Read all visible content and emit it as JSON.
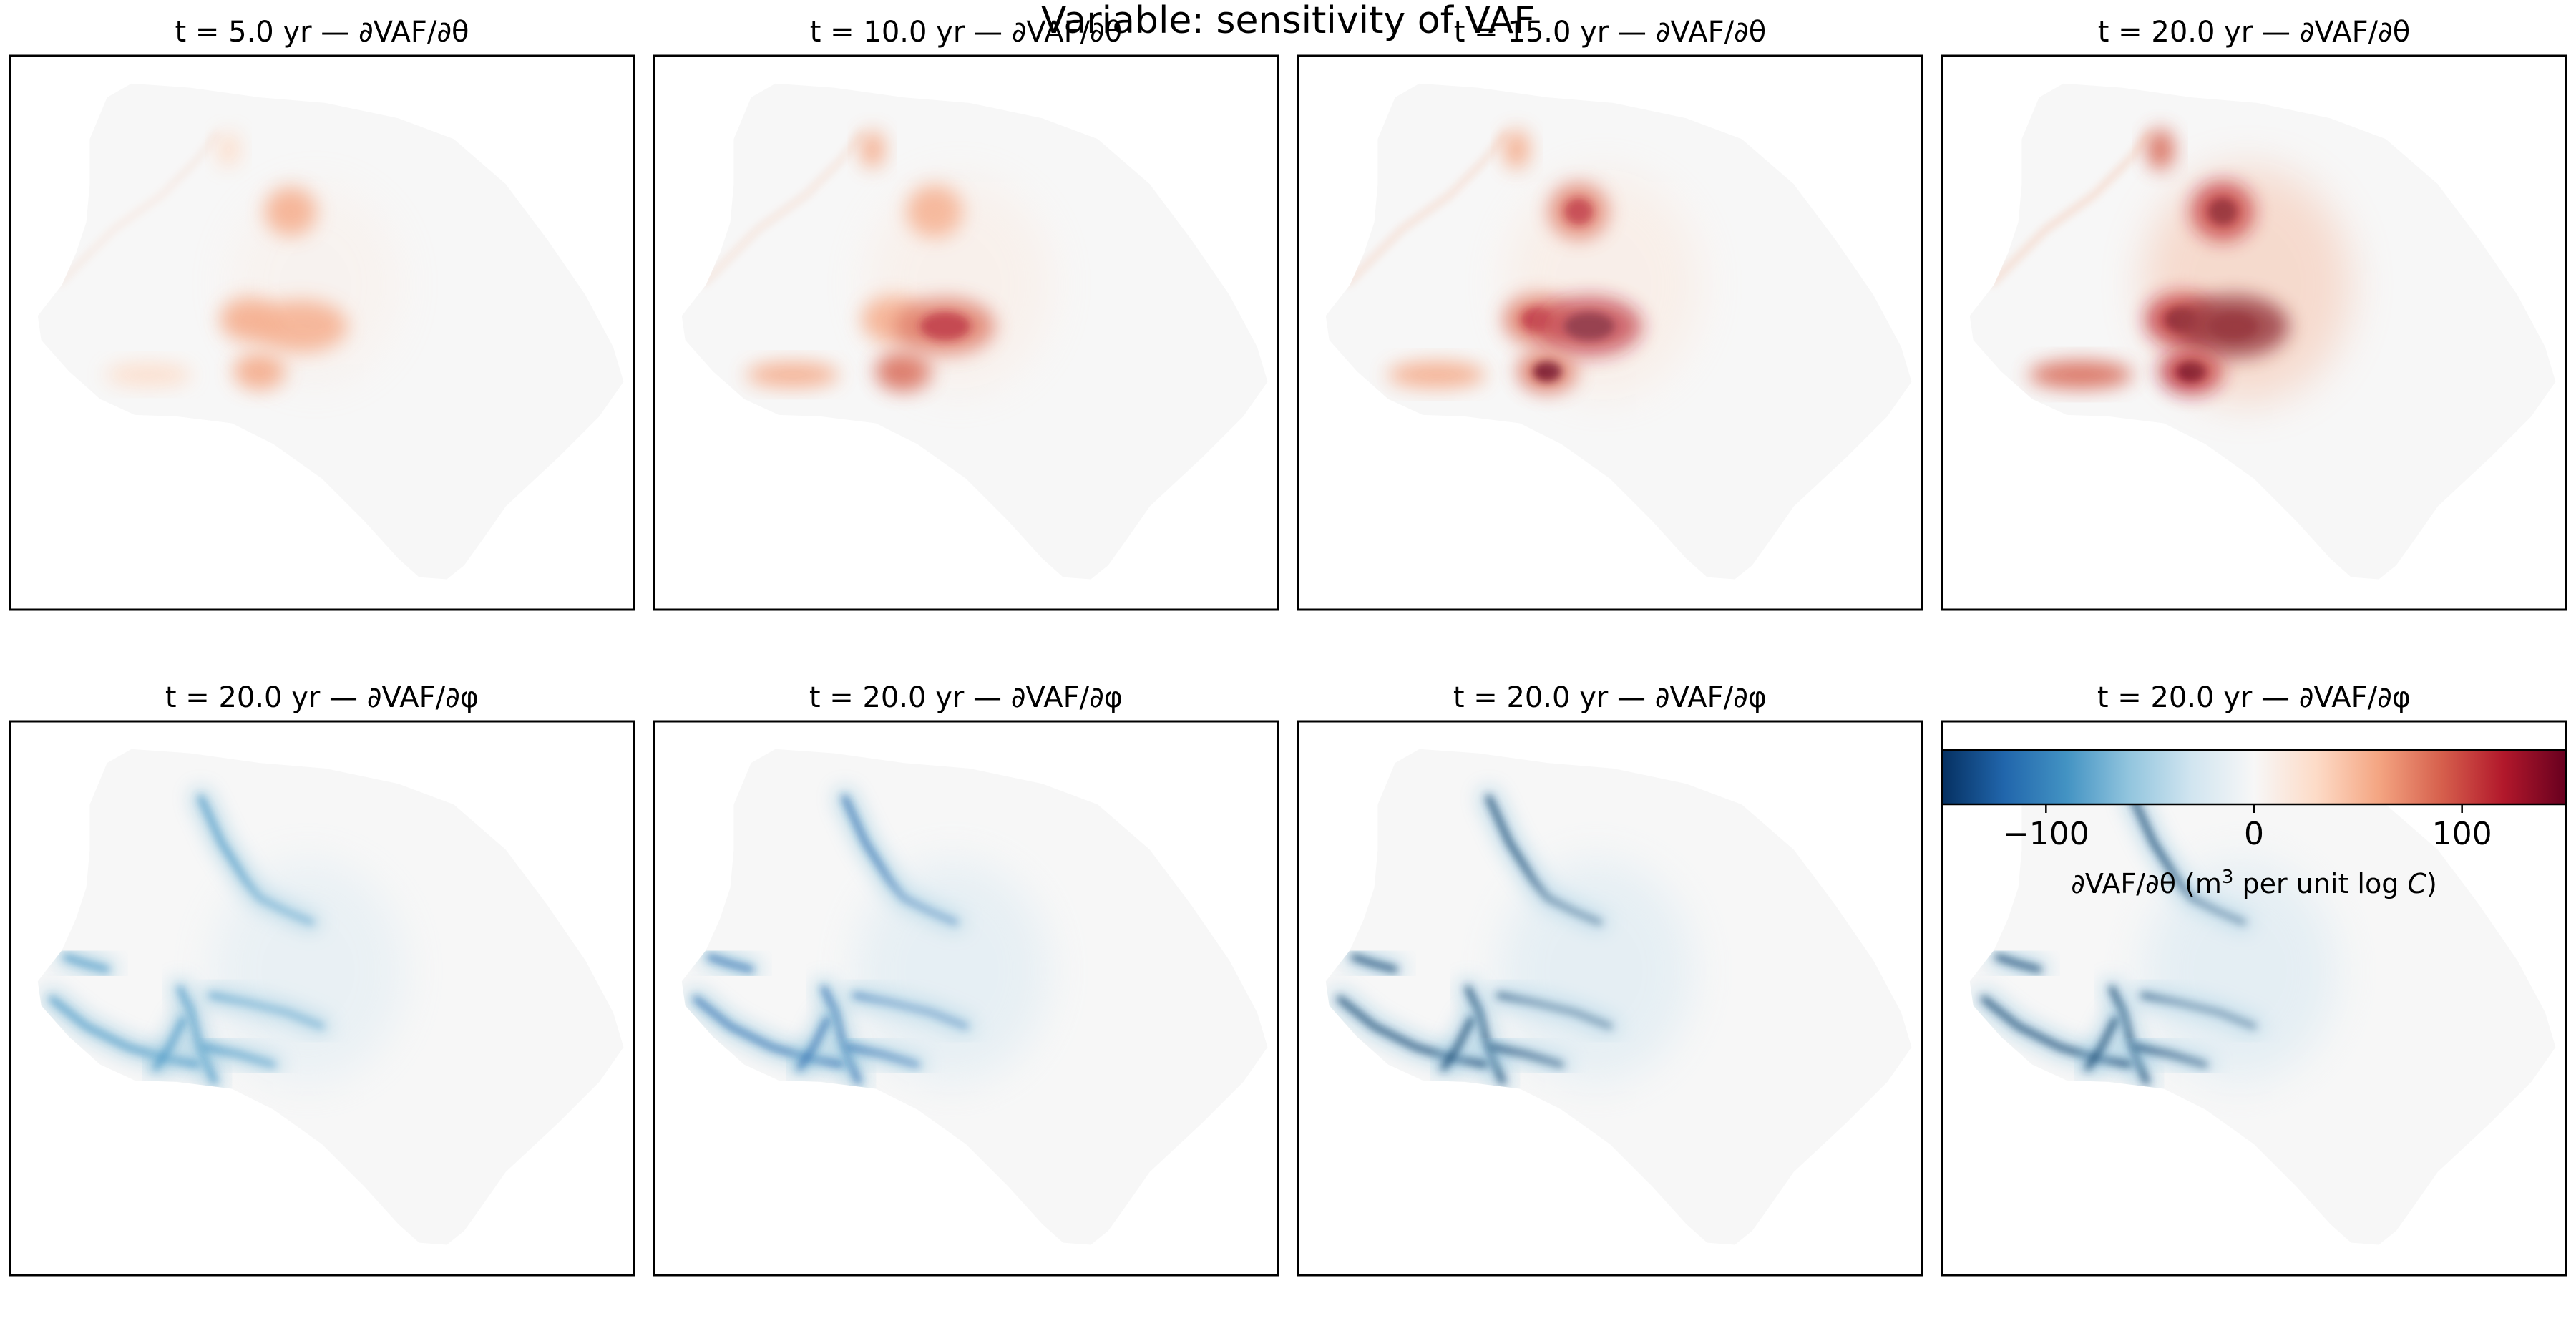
{
  "figure": {
    "suptitle": "Variable: sensitivity of VAF"
  },
  "colors": {
    "neg_strong": "#053061",
    "neg_mid": "#4393c3",
    "neutral": "#f7f7f7",
    "pos_mid": "#f4a582",
    "pos_strong": "#67001f",
    "panel_border": "#000000"
  },
  "chart_data": [
    {
      "type": "heatmap",
      "row": 0,
      "col": 0,
      "title": "t = 5.0 yr — ∂VAF/∂θ",
      "variable": "theta",
      "sign": "positive",
      "intensity": 0.45
    },
    {
      "type": "heatmap",
      "row": 0,
      "col": 1,
      "title": "t = 10.0 yr — ∂VAF/∂θ",
      "variable": "theta",
      "sign": "positive",
      "intensity": 0.65
    },
    {
      "type": "heatmap",
      "row": 0,
      "col": 2,
      "title": "t = 15.0 yr — ∂VAF/∂θ",
      "variable": "theta",
      "sign": "positive",
      "intensity": 0.82
    },
    {
      "type": "heatmap",
      "row": 0,
      "col": 3,
      "title": "t = 20.0 yr — ∂VAF/∂θ",
      "variable": "theta",
      "sign": "positive",
      "intensity": 1.0
    },
    {
      "type": "heatmap",
      "row": 1,
      "col": 0,
      "title": "t = 20.0 yr — ∂VAF/∂φ",
      "variable": "phi",
      "sign": "negative",
      "intensity": 0.7
    },
    {
      "type": "heatmap",
      "row": 1,
      "col": 1,
      "title": "t = 20.0 yr — ∂VAF/∂φ",
      "variable": "phi",
      "sign": "negative",
      "intensity": 0.85
    },
    {
      "type": "heatmap",
      "row": 1,
      "col": 2,
      "title": "t = 20.0 yr — ∂VAF/∂φ",
      "variable": "phi",
      "sign": "negative",
      "intensity": 0.9
    },
    {
      "type": "heatmap",
      "row": 1,
      "col": 3,
      "title": "t = 20.0 yr — ∂VAF/∂φ",
      "variable": "phi",
      "sign": "negative",
      "intensity": 0.95
    }
  ],
  "colorbar": {
    "range": [
      -150,
      150
    ],
    "ticks": [
      -100,
      0,
      100
    ],
    "tick_labels": [
      "−100",
      "0",
      "100"
    ],
    "label_main": "∂VAF/∂θ  (m",
    "label_sup": "3",
    "label_rest": " per unit log ",
    "label_var": "C",
    "label_close": ")"
  }
}
